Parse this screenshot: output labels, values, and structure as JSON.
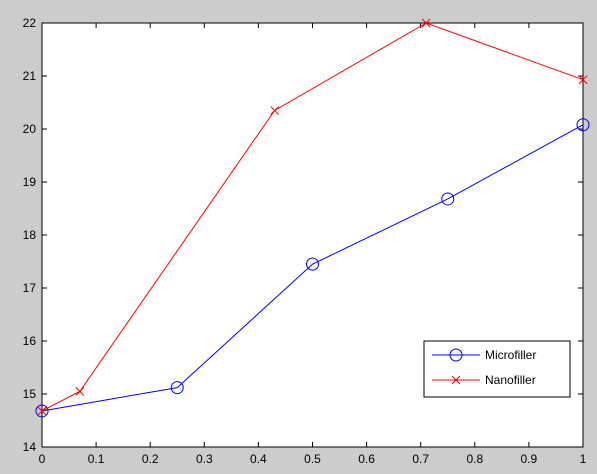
{
  "chart_data": {
    "type": "line",
    "title": "",
    "xlabel": "",
    "ylabel": "",
    "xlim": [
      0,
      1
    ],
    "ylim": [
      14,
      22
    ],
    "xticks": [
      0,
      0.1,
      0.2,
      0.3,
      0.4,
      0.5,
      0.6,
      0.7,
      0.8,
      0.9,
      1
    ],
    "xtick_labels": [
      "0",
      "0.1",
      "0.2",
      "0.3",
      "0.4",
      "0.5",
      "0.6",
      "0.7",
      "0.8",
      "0.9",
      "1"
    ],
    "yticks": [
      14,
      15,
      16,
      17,
      18,
      19,
      20,
      21,
      22
    ],
    "ytick_labels": [
      "14",
      "15",
      "16",
      "17",
      "18",
      "19",
      "20",
      "21",
      "22"
    ],
    "grid": false,
    "legend_position": "bottom-right",
    "series": [
      {
        "name": "Microfiller",
        "color": "#0000ff",
        "marker": "circle",
        "x": [
          0,
          0.25,
          0.5,
          0.75,
          1
        ],
        "y": [
          14.68,
          15.12,
          17.45,
          18.68,
          20.08
        ]
      },
      {
        "name": "Nanofiller",
        "color": "#ff0000",
        "marker": "x",
        "x": [
          0,
          0.07,
          0.43,
          0.71,
          1
        ],
        "y": [
          14.68,
          15.05,
          20.35,
          22.0,
          20.93
        ]
      }
    ]
  }
}
